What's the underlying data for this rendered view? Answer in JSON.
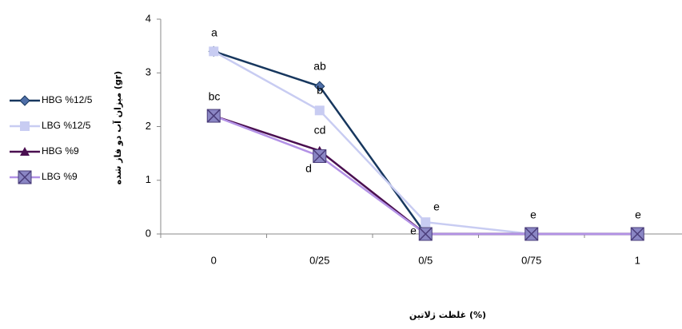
{
  "chart_data": {
    "type": "line",
    "x_label": "غلظت ژلاتین (%)",
    "y_label": "میزان آب دو فاز شده (gr)",
    "categories": [
      "0",
      "0/25",
      "0/5",
      "0/75",
      "1"
    ],
    "series": [
      {
        "name": "HBG %12/5",
        "color": "#17375e",
        "marker": "diamond",
        "marker_color": "#4f6fa8",
        "values": [
          3.4,
          2.75,
          0,
          0,
          0
        ]
      },
      {
        "name": "LBG %12/5",
        "color": "#c8ccf2",
        "marker": "square",
        "marker_color": "#c8ccf2",
        "values": [
          3.4,
          2.3,
          0.22,
          0,
          0
        ]
      },
      {
        "name": "HBG %9",
        "color": "#4a0f50",
        "marker": "triangle",
        "marker_color": "#4a0f50",
        "values": [
          2.2,
          1.55,
          0,
          0,
          0
        ]
      },
      {
        "name": "LBG %9",
        "color": "#b392e6",
        "marker": "xsquare",
        "marker_color": "#8a86c4",
        "values": [
          2.2,
          1.45,
          0,
          0,
          0
        ]
      }
    ],
    "annotations": [
      "a",
      "ab",
      "b",
      "bc",
      "cd",
      "d",
      "e",
      "e",
      "e",
      "e"
    ],
    "ylim": [
      0,
      4
    ],
    "yticks": [
      0,
      1,
      2,
      3,
      4
    ],
    "legend": "left"
  }
}
